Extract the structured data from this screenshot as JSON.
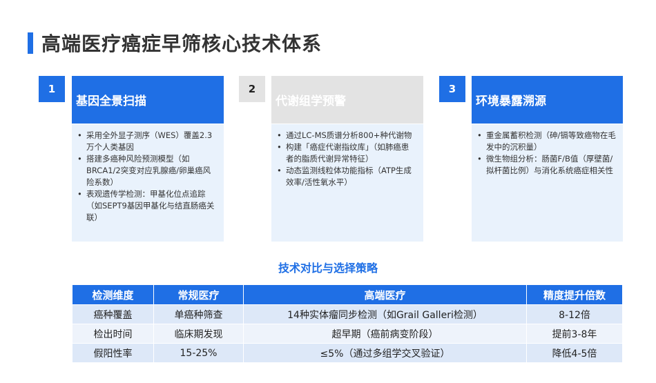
{
  "page": {
    "title": "高端医疗癌症早筛核心技术体系"
  },
  "cards": [
    {
      "number": "1",
      "title": "基因全景扫描",
      "bullets": [
        "采用全外显子测序（WES）覆盖2.3万个人类基因",
        "搭建多癌种风险预测模型（如BRCA1/2突变对应乳腺癌/卵巢癌风险系数）",
        "表观遗传学检测：甲基化位点追踪（如SEPT9基因甲基化与结直肠癌关联）"
      ]
    },
    {
      "number": "2",
      "title": "代谢组学预警",
      "bullets": [
        "通过LC-MS质谱分析800+种代谢物",
        "构建「癌症代谢指纹库」（如肺癌患者的脂质代谢异常特征）",
        "动态监测线粒体功能指标（ATP生成效率/活性氧水平）"
      ]
    },
    {
      "number": "3",
      "title": "环境暴露溯源",
      "bullets": [
        "重金属蓄积检测（砷/镉等致癌物在毛发中的沉积量）",
        "微生物组分析：肠菌F/B值（厚壁菌/拟杆菌比例）与消化系统癌症相关性"
      ]
    }
  ],
  "comparison": {
    "heading": "技术对比与选择策略",
    "headers": [
      "检测维度",
      "常规医疗",
      "高端医疗",
      "精度提升倍数"
    ],
    "rows": [
      [
        "癌种覆盖",
        "单癌种筛查",
        "14种实体瘤同步检测（如Grail Galleri检测）",
        "8-12倍"
      ],
      [
        "检出时间",
        "临床期发现",
        "超早期（癌前病变阶段）",
        "提前3-8年"
      ],
      [
        "假阳性率",
        "15-25%",
        "≤5%（通过多组学交叉验证）",
        "降低4-5倍"
      ]
    ]
  },
  "colors": {
    "accent": "#1f6fe5",
    "card_gray": "#e3e3e3",
    "card_body": "#e9f2fc"
  }
}
